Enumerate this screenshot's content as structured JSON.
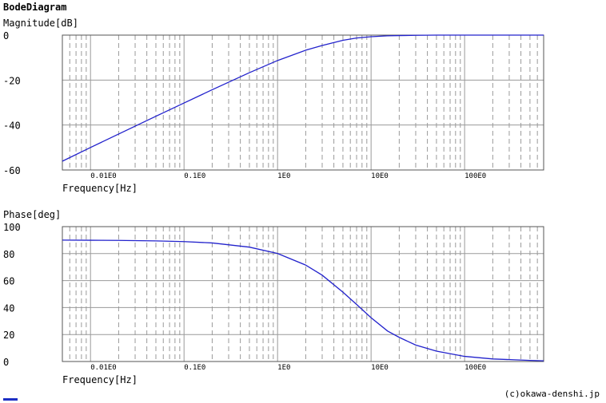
{
  "title": "BodeDiagram",
  "credit": "(c)okawa-denshi.jp",
  "colors": {
    "curve": "#2222cc",
    "grid": "#9a9a9a",
    "frame": "#555555"
  },
  "chart_data": [
    {
      "type": "line",
      "ylabel": "Magnitude[dB]",
      "xlabel": "Frequency[Hz]",
      "x_scale": "log",
      "xlim": [
        0.005,
        700
      ],
      "ylim": [
        -60,
        0
      ],
      "yticks": [
        0,
        -20,
        -40,
        -60
      ],
      "xticks": [
        {
          "value": 0.01,
          "label": "0.01E0"
        },
        {
          "value": 0.1,
          "label": "0.1E0"
        },
        {
          "value": 1,
          "label": "1E0"
        },
        {
          "value": 10,
          "label": "10E0"
        },
        {
          "value": 100,
          "label": "100E0"
        }
      ],
      "grid": true,
      "series": [
        {
          "x": [
            0.005,
            0.01,
            0.02,
            0.05,
            0.1,
            0.2,
            0.5,
            1,
            2,
            3,
            5,
            7,
            10,
            15,
            20,
            30,
            50,
            100,
            200,
            500,
            700
          ],
          "y": [
            -56.1,
            -50.0,
            -44.0,
            -36.1,
            -30.2,
            -24.3,
            -16.7,
            -11.3,
            -6.7,
            -4.6,
            -2.3,
            -1.3,
            -0.7,
            -0.3,
            -0.2,
            -0.1,
            0,
            0,
            0,
            0,
            0
          ]
        }
      ]
    },
    {
      "type": "line",
      "ylabel": "Phase[deg]",
      "xlabel": "Frequency[Hz]",
      "x_scale": "log",
      "xlim": [
        0.005,
        700
      ],
      "ylim": [
        0,
        100
      ],
      "yticks": [
        100,
        80,
        60,
        40,
        20,
        0
      ],
      "xticks": [
        {
          "value": 0.01,
          "label": "0.01E0"
        },
        {
          "value": 0.1,
          "label": "0.1E0"
        },
        {
          "value": 1,
          "label": "1E0"
        },
        {
          "value": 10,
          "label": "10E0"
        },
        {
          "value": 100,
          "label": "100E0"
        }
      ],
      "grid": true,
      "series": [
        {
          "x": [
            0.005,
            0.01,
            0.02,
            0.05,
            0.1,
            0.2,
            0.5,
            1,
            2,
            3,
            5,
            7,
            10,
            15,
            20,
            30,
            50,
            100,
            200,
            500,
            700
          ],
          "y": [
            90,
            89.9,
            89.8,
            89.4,
            88.9,
            87.9,
            84.8,
            80.1,
            71.5,
            64.0,
            51.4,
            42.3,
            32.5,
            22.6,
            17.9,
            12.2,
            7.7,
            3.8,
            1.9,
            0.8,
            0.5
          ]
        }
      ]
    }
  ]
}
